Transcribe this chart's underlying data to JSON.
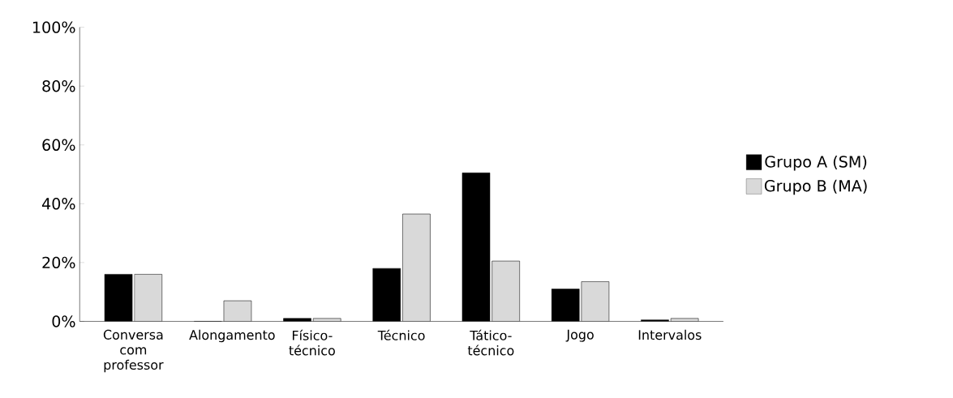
{
  "chart_data": {
    "type": "bar",
    "categories": [
      "Conversa com professor",
      "Alongamento",
      "Físico-técnico",
      "Técnico",
      "Tático-técnico",
      "Jogo",
      "Intervalos"
    ],
    "series": [
      {
        "name": "Grupo A (SM)",
        "color": "#000000",
        "values": [
          16,
          0,
          1,
          18,
          50.5,
          11,
          0.5
        ]
      },
      {
        "name": "Grupo B (MA)",
        "color": "#d9d9d9",
        "values": [
          16,
          7,
          1,
          36.5,
          20.5,
          13.5,
          1
        ]
      }
    ],
    "ylim": [
      0,
      100
    ],
    "yticks": [
      {
        "value": 0,
        "label": "0%"
      },
      {
        "value": 20,
        "label": "20%"
      },
      {
        "value": 40,
        "label": "40%"
      },
      {
        "value": 60,
        "label": "60%"
      },
      {
        "value": 80,
        "label": "80%"
      },
      {
        "value": 100,
        "label": "100%"
      }
    ],
    "grid": false,
    "legend": "right"
  }
}
